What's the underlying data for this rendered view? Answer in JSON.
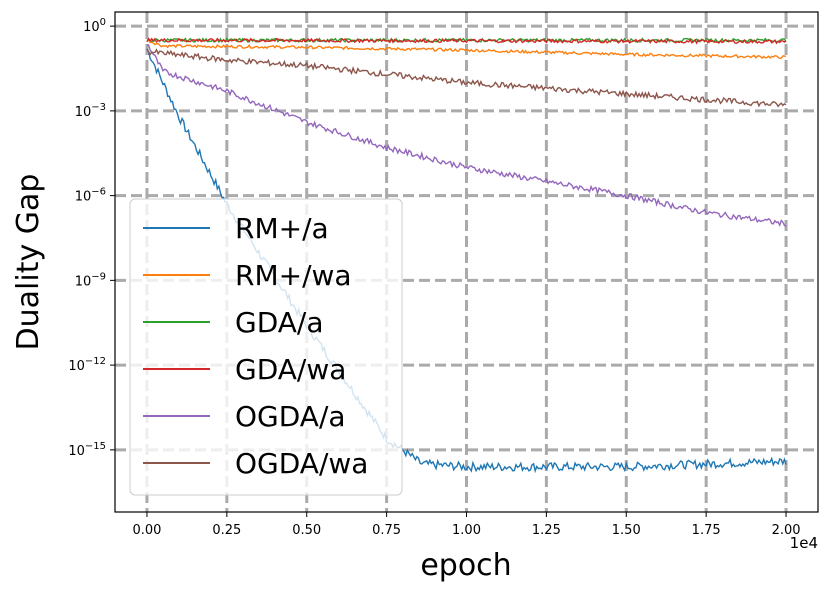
{
  "chart_data": {
    "type": "line",
    "title": "",
    "xlabel": "epoch",
    "ylabel": "Duality Gap",
    "x_offset_label": "1e4",
    "xscale": "linear",
    "yscale": "log",
    "xlim": [
      -0.1,
      2.1
    ],
    "ylim_log10": [
      -17.2,
      0.5
    ],
    "grid": true,
    "legend_position": "lower-left",
    "x_ticks": [
      {
        "value": 0.0,
        "label": "0.00"
      },
      {
        "value": 0.25,
        "label": "0.25"
      },
      {
        "value": 0.5,
        "label": "0.50"
      },
      {
        "value": 0.75,
        "label": "0.75"
      },
      {
        "value": 1.0,
        "label": "1.00"
      },
      {
        "value": 1.25,
        "label": "1.25"
      },
      {
        "value": 1.5,
        "label": "1.50"
      },
      {
        "value": 1.75,
        "label": "1.75"
      },
      {
        "value": 2.0,
        "label": "2.00"
      }
    ],
    "y_ticks": [
      {
        "exp": 0,
        "base": "10",
        "sup": "0"
      },
      {
        "exp": -3,
        "base": "10",
        "sup": "−3"
      },
      {
        "exp": -6,
        "base": "10",
        "sup": "−6"
      },
      {
        "exp": -9,
        "base": "10",
        "sup": "−9"
      },
      {
        "exp": -12,
        "base": "10",
        "sup": "−12"
      },
      {
        "exp": -15,
        "base": "10",
        "sup": "−15"
      }
    ],
    "series": [
      {
        "name": "RM+/a",
        "color": "#1f77b4",
        "x": [
          0.0,
          0.1,
          0.25,
          0.5,
          0.75,
          0.86,
          1.0,
          1.25,
          1.5,
          1.75,
          2.0
        ],
        "log10_y": [
          -0.8,
          -3.2,
          -6.3,
          -10.6,
          -14.6,
          -15.5,
          -15.6,
          -15.6,
          -15.6,
          -15.5,
          -15.4
        ],
        "noise": 0.15
      },
      {
        "name": "RM+/wa",
        "color": "#ff7f0e",
        "x": [
          0.0,
          0.05,
          0.5,
          1.0,
          1.5,
          2.0
        ],
        "log10_y": [
          -0.5,
          -0.7,
          -0.75,
          -0.85,
          -1.0,
          -1.1
        ],
        "noise": 0.05
      },
      {
        "name": "GDA/a",
        "color": "#2ca02c",
        "x": [
          0.0,
          1.0,
          2.0
        ],
        "log10_y": [
          -0.5,
          -0.5,
          -0.5
        ],
        "noise": 0.06
      },
      {
        "name": "GDA/wa",
        "color": "#d62728",
        "x": [
          0.0,
          1.0,
          2.0
        ],
        "log10_y": [
          -0.5,
          -0.52,
          -0.55
        ],
        "noise": 0.06
      },
      {
        "name": "OGDA/a",
        "color": "#9467bd",
        "x": [
          0.0,
          0.05,
          0.25,
          0.5,
          0.75,
          1.0,
          1.25,
          1.5,
          1.75,
          2.0
        ],
        "log10_y": [
          -0.6,
          -1.6,
          -2.3,
          -3.4,
          -4.3,
          -5.0,
          -5.5,
          -6.0,
          -6.6,
          -7.0
        ],
        "noise": 0.1
      },
      {
        "name": "OGDA/wa",
        "color": "#8c564b",
        "x": [
          0.0,
          0.25,
          0.5,
          1.0,
          1.5,
          2.0
        ],
        "log10_y": [
          -0.9,
          -1.2,
          -1.4,
          -2.0,
          -2.4,
          -2.8
        ],
        "noise": 0.1
      }
    ]
  }
}
